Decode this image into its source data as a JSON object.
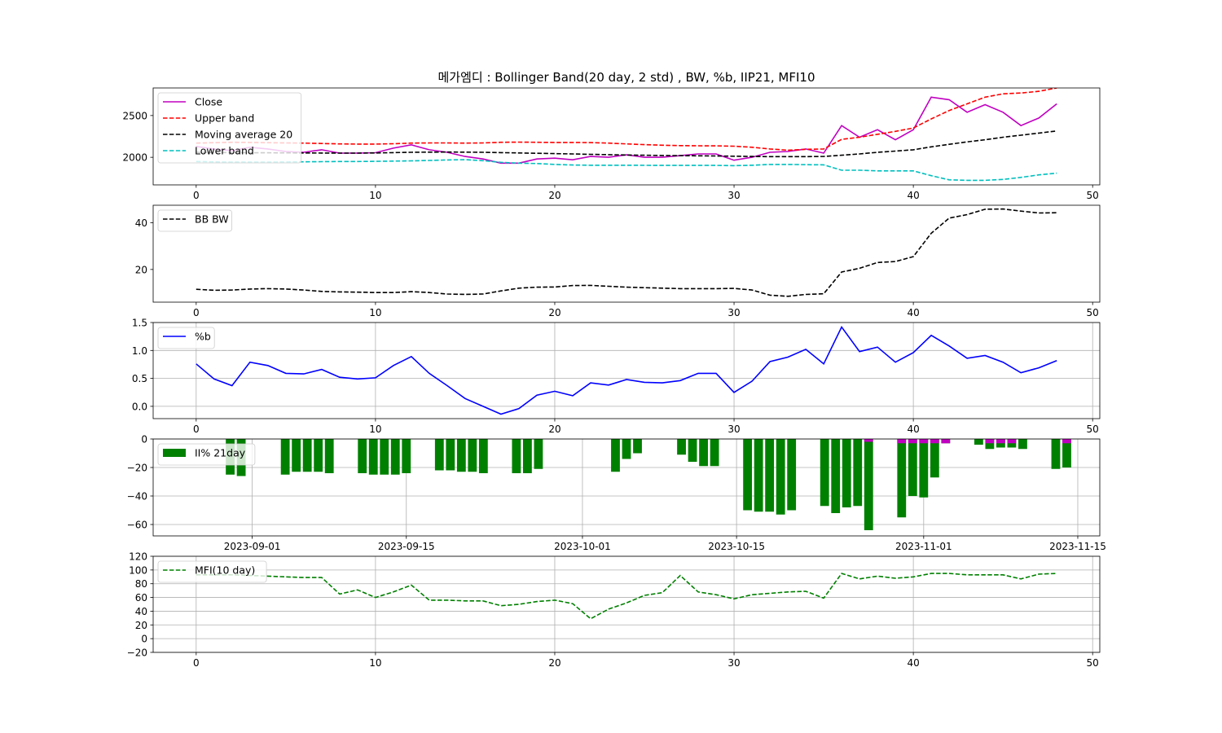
{
  "title": "메가엠디 : Bollinger Band(20 day, 2 std) , BW, %b, IIP21, MFI10",
  "colors": {
    "close": "#c000c0",
    "upper": "#ff0000",
    "ma": "#000000",
    "lower": "#00bfbf",
    "bw": "#000000",
    "pb": "#0000ff",
    "iip": "#008000",
    "iip_pos": "#c000c0",
    "mfi": "#008000"
  },
  "chart_data": [
    {
      "type": "line",
      "xlim": [
        -2.4,
        50.4
      ],
      "ylim": [
        1670,
        2830
      ],
      "xticks": [
        0,
        10,
        20,
        30,
        40,
        50
      ],
      "yticks": [
        2000,
        2500
      ],
      "grid": false,
      "legend_position": "top-left",
      "series": [
        {
          "name": "Close",
          "style": "solid",
          "color": "close",
          "values": [
            2130,
            2100,
            2080,
            2120,
            2100,
            2070,
            2060,
            2090,
            2050,
            2050,
            2055,
            2110,
            2150,
            2090,
            2060,
            2010,
            1980,
            1930,
            1930,
            1980,
            1990,
            1970,
            2010,
            2000,
            2030,
            2000,
            2000,
            2020,
            2040,
            2040,
            1965,
            2000,
            2060,
            2070,
            2100,
            2050,
            2380,
            2240,
            2330,
            2210,
            2330,
            2720,
            2690,
            2540,
            2630,
            2540,
            2380,
            2470,
            2640
          ]
        },
        {
          "name": "Upper band",
          "style": "dashed",
          "color": "upper",
          "values": [
            2170,
            2175,
            2180,
            2178,
            2175,
            2172,
            2170,
            2165,
            2160,
            2158,
            2158,
            2162,
            2170,
            2172,
            2172,
            2170,
            2172,
            2180,
            2182,
            2180,
            2178,
            2178,
            2176,
            2170,
            2160,
            2152,
            2145,
            2140,
            2138,
            2137,
            2133,
            2120,
            2100,
            2085,
            2095,
            2100,
            2215,
            2240,
            2275,
            2310,
            2350,
            2460,
            2560,
            2640,
            2720,
            2760,
            2770,
            2790,
            2830
          ]
        },
        {
          "name": "Moving average 20",
          "style": "dashed",
          "color": "ma",
          "values": [
            2060,
            2058,
            2056,
            2055,
            2054,
            2053,
            2052,
            2051,
            2050,
            2050,
            2052,
            2056,
            2060,
            2062,
            2063,
            2062,
            2060,
            2056,
            2052,
            2048,
            2044,
            2040,
            2036,
            2032,
            2028,
            2025,
            2022,
            2020,
            2018,
            2016,
            2013,
            2010,
            2008,
            2008,
            2008,
            2010,
            2025,
            2040,
            2060,
            2075,
            2090,
            2125,
            2155,
            2185,
            2210,
            2240,
            2265,
            2290,
            2315
          ]
        },
        {
          "name": "Lower band",
          "style": "dashed",
          "color": "lower",
          "values": [
            1950,
            1945,
            1942,
            1942,
            1942,
            1944,
            1946,
            1948,
            1950,
            1950,
            1952,
            1955,
            1958,
            1962,
            1968,
            1972,
            1960,
            1940,
            1930,
            1925,
            1915,
            1908,
            1905,
            1905,
            1905,
            1904,
            1903,
            1903,
            1903,
            1903,
            1900,
            1905,
            1915,
            1915,
            1912,
            1910,
            1845,
            1845,
            1838,
            1838,
            1838,
            1780,
            1730,
            1725,
            1725,
            1735,
            1760,
            1790,
            1810
          ]
        }
      ]
    },
    {
      "type": "line",
      "xlim": [
        -2.4,
        50.4
      ],
      "ylim": [
        6,
        47.5
      ],
      "xticks": [
        0,
        10,
        20,
        30,
        40,
        50
      ],
      "yticks": [
        20,
        40
      ],
      "grid": false,
      "legend_position": "top-left",
      "series": [
        {
          "name": "BB BW",
          "style": "dashed",
          "color": "bw",
          "values": [
            11.5,
            11.1,
            11.2,
            11.6,
            11.8,
            11.6,
            11.2,
            10.6,
            10.4,
            10.3,
            10.1,
            10.1,
            10.5,
            10.1,
            9.5,
            9.3,
            9.5,
            10.8,
            12.0,
            12.4,
            12.5,
            13.1,
            13.2,
            12.8,
            12.4,
            12.2,
            12.0,
            11.8,
            11.8,
            11.8,
            11.9,
            11.2,
            9.0,
            8.5,
            9.3,
            9.6,
            18.9,
            20.5,
            23.0,
            23.4,
            25.5,
            35.5,
            42.0,
            43.5,
            45.8,
            45.9,
            45.0,
            44.2,
            44.3
          ]
        }
      ]
    },
    {
      "type": "line",
      "xlim": [
        -2.4,
        50.4
      ],
      "ylim": [
        -0.22,
        1.5
      ],
      "xticks": [
        0,
        10,
        20,
        30,
        40,
        50
      ],
      "yticks": [
        0.0,
        0.5,
        1.0,
        1.5
      ],
      "ytick_labels": [
        "0.0",
        "0.5",
        "1.0",
        "1.5"
      ],
      "grid": true,
      "legend_position": "top-left",
      "series": [
        {
          "name": "%b",
          "style": "solid",
          "color": "pb",
          "values": [
            0.76,
            0.49,
            0.37,
            0.79,
            0.73,
            0.59,
            0.58,
            0.66,
            0.52,
            0.49,
            0.51,
            0.73,
            0.89,
            0.59,
            0.37,
            0.14,
            0.0,
            -0.14,
            -0.04,
            0.2,
            0.27,
            0.19,
            0.42,
            0.38,
            0.48,
            0.43,
            0.42,
            0.46,
            0.59,
            0.59,
            0.25,
            0.45,
            0.8,
            0.88,
            1.02,
            0.76,
            1.42,
            0.98,
            1.06,
            0.79,
            0.96,
            1.27,
            1.08,
            0.86,
            0.91,
            0.79,
            0.6,
            0.69,
            0.82
          ]
        }
      ]
    },
    {
      "type": "bar",
      "x_dates": [
        "2023-08-30",
        "2023-08-31",
        "2023-09-04",
        "2023-09-05",
        "2023-09-06",
        "2023-09-07",
        "2023-09-08",
        "2023-09-11",
        "2023-09-12",
        "2023-09-13",
        "2023-09-14",
        "2023-09-15",
        "2023-09-18",
        "2023-09-19",
        "2023-09-20",
        "2023-09-21",
        "2023-09-22",
        "2023-09-25",
        "2023-09-26",
        "2023-09-27",
        "2023-10-04",
        "2023-10-05",
        "2023-10-06",
        "2023-10-10",
        "2023-10-11",
        "2023-10-12",
        "2023-10-13",
        "2023-10-16",
        "2023-10-17",
        "2023-10-18",
        "2023-10-19",
        "2023-10-20",
        "2023-10-23",
        "2023-10-24",
        "2023-10-25",
        "2023-10-26",
        "2023-10-27",
        "2023-10-30",
        "2023-10-31",
        "2023-11-01",
        "2023-11-02",
        "2023-11-03",
        "2023-11-06",
        "2023-11-07",
        "2023-11-08",
        "2023-11-09",
        "2023-11-10",
        "2023-11-13",
        "2023-11-14"
      ],
      "values": [
        -25,
        -26,
        -25,
        -23,
        -23,
        -23,
        -24,
        -24,
        -25,
        -25,
        -25,
        -24,
        -22,
        -22,
        -23,
        -23,
        -24,
        -24,
        -24,
        -21,
        -23,
        -14,
        -10,
        -11,
        -16,
        -19,
        -19,
        -50,
        -51,
        -51,
        -53,
        -50,
        -47,
        -52,
        -48,
        -47,
        -64,
        -55,
        -40,
        -41,
        -27,
        -3,
        -4,
        -7,
        -6,
        -6,
        -7,
        -21,
        -20
      ],
      "pos_bars": [
        {
          "date": "2023-10-27",
          "value": 2
        },
        {
          "date": "2023-10-30",
          "value": 3
        },
        {
          "date": "2023-10-31",
          "value": 3
        },
        {
          "date": "2023-11-01",
          "value": 3
        },
        {
          "date": "2023-11-02",
          "value": 3
        },
        {
          "date": "2023-11-03",
          "value": 3
        },
        {
          "date": "2023-11-07",
          "value": 3
        },
        {
          "date": "2023-11-08",
          "value": 3
        },
        {
          "date": "2023-11-09",
          "value": 3
        },
        {
          "date": "2023-11-14",
          "value": 3
        }
      ],
      "xlim_dates": [
        "2023-08-23",
        "2023-11-17"
      ],
      "ylim": [
        -68,
        0
      ],
      "xticks": [
        "2023-09-01",
        "2023-09-15",
        "2023-10-01",
        "2023-10-15",
        "2023-11-01",
        "2023-11-15"
      ],
      "yticks": [
        0,
        -20,
        -40,
        -60
      ],
      "ytick_labels": [
        "0",
        "−20",
        "−40",
        "−60"
      ],
      "grid": true,
      "legend_position": "top-left",
      "series": [
        {
          "name": "II% 21day",
          "color": "iip"
        }
      ]
    },
    {
      "type": "line",
      "xlim": [
        -2.4,
        50.4
      ],
      "ylim": [
        -20,
        120
      ],
      "xticks": [
        0,
        10,
        20,
        30,
        40,
        50
      ],
      "yticks": [
        -20,
        0,
        20,
        40,
        60,
        80,
        100,
        120
      ],
      "ytick_labels": [
        "−20",
        "0",
        "20",
        "40",
        "60",
        "80",
        "100",
        "120"
      ],
      "grid": true,
      "legend_position": "top-left",
      "series": [
        {
          "name": "MFI(10 day)",
          "style": "dashed",
          "color": "mfi",
          "values": [
            93,
            93,
            93,
            92,
            91,
            90,
            89,
            89,
            65,
            71,
            60,
            68,
            78,
            56,
            56,
            55,
            55,
            48,
            50,
            54,
            56,
            51,
            29,
            43,
            52,
            63,
            67,
            92,
            68,
            64,
            58,
            64,
            66,
            68,
            69,
            59,
            95,
            87,
            91,
            88,
            90,
            95,
            95,
            93,
            93,
            93,
            87,
            94,
            95
          ]
        }
      ]
    }
  ]
}
